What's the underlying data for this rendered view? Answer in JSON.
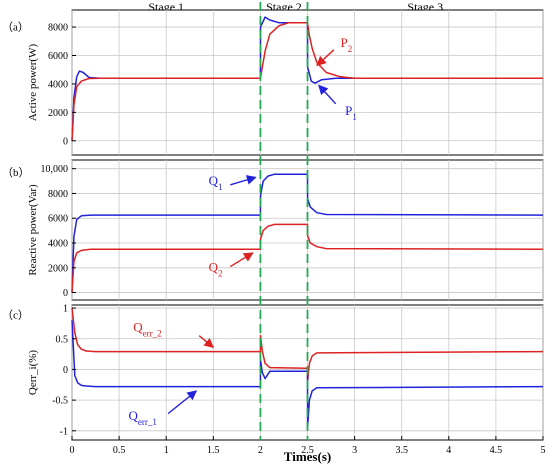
{
  "colors": {
    "p1": "#2222dd",
    "p2": "#dd2222",
    "divider": "#22aa55",
    "grid": "#c8c8c8",
    "axis": "#000000"
  },
  "chart_data": {
    "type": "line",
    "xlabel": "Times(s)",
    "x_ticks": [
      "0",
      "0.5",
      "1",
      "1.5",
      "2",
      "2.5",
      "3",
      "3.5",
      "4",
      "4.5",
      "5"
    ],
    "xlim": [
      0,
      5
    ],
    "stages": [
      {
        "label": "Stage 1",
        "x_center": 1.0
      },
      {
        "label": "Stage 2",
        "x_center": 2.25
      },
      {
        "label": "Stage 3",
        "x_center": 3.75
      }
    ],
    "dividers": [
      2.0,
      2.5
    ],
    "grid": true,
    "panels": [
      {
        "id": "a",
        "tag": "（a）",
        "ylabel": "Active power(W)",
        "ylim": [
          -1000,
          9200
        ],
        "y_ticks": [
          0,
          2000,
          4000,
          6000,
          8000
        ],
        "y_tick_labels": [
          "0",
          "2000",
          "4000",
          "6000",
          "8000"
        ],
        "series": [
          {
            "name": "P1",
            "label_main": "P",
            "label_sub": "1",
            "color": "blue",
            "x": [
              0,
              0.02,
              0.05,
              0.08,
              0.12,
              0.18,
              0.3,
              2.0,
              2.001,
              2.05,
              2.1,
              2.2,
              2.5,
              2.501,
              2.54,
              2.58,
              2.65,
              2.8,
              5.0
            ],
            "y": [
              0,
              3000,
              4500,
              4900,
              4800,
              4450,
              4400,
              4400,
              8000,
              8700,
              8500,
              8300,
              8300,
              5200,
              4200,
              4050,
              4300,
              4400,
              4400
            ]
          },
          {
            "name": "P2",
            "label_main": "P",
            "label_sub": "2",
            "color": "red",
            "x": [
              0,
              0.02,
              0.05,
              0.1,
              0.18,
              0.3,
              2.0,
              2.05,
              2.1,
              2.2,
              2.3,
              2.5,
              2.52,
              2.55,
              2.6,
              2.7,
              2.85,
              3.0,
              5.0
            ],
            "y": [
              0,
              2500,
              3800,
              4200,
              4380,
              4400,
              4400,
              6300,
              7500,
              8100,
              8300,
              8300,
              7400,
              6500,
              5500,
              4800,
              4500,
              4400,
              4400
            ]
          }
        ],
        "annotations": [
          {
            "series": "P2",
            "text_x": 2.85,
            "text_y": 6600,
            "arrow_from": [
              2.78,
              6400
            ],
            "arrow_to": [
              2.6,
              5300
            ]
          },
          {
            "series": "P1",
            "text_x": 2.9,
            "text_y": 1800,
            "arrow_from": [
              2.8,
              2600
            ],
            "arrow_to": [
              2.62,
              3900
            ]
          }
        ]
      },
      {
        "id": "b",
        "tag": "（b）",
        "ylabel": "Reactive power(Var)",
        "ylim": [
          -600,
          10700
        ],
        "y_ticks": [
          0,
          2000,
          4000,
          6000,
          8000,
          10000
        ],
        "y_tick_labels": [
          "0",
          "2000",
          "4000",
          "6000",
          "8000",
          "10,000"
        ],
        "series": [
          {
            "name": "Q1",
            "label_main": "Q",
            "label_sub": "1",
            "color": "blue",
            "x": [
              0,
              0.02,
              0.05,
              0.1,
              0.2,
              2.0,
              2.001,
              2.03,
              2.08,
              2.15,
              2.5,
              2.501,
              2.53,
              2.6,
              2.7,
              5.0
            ],
            "y": [
              0,
              4500,
              5900,
              6200,
              6250,
              6250,
              7800,
              9000,
              9400,
              9550,
              9550,
              7600,
              6900,
              6450,
              6300,
              6250
            ]
          },
          {
            "name": "Q2",
            "label_main": "Q",
            "label_sub": "2",
            "color": "red",
            "x": [
              0,
              0.02,
              0.05,
              0.1,
              0.2,
              2.0,
              2.001,
              2.03,
              2.08,
              2.15,
              2.5,
              2.501,
              2.53,
              2.6,
              2.7,
              5.0
            ],
            "y": [
              0,
              2500,
              3200,
              3400,
              3500,
              3500,
              4300,
              5000,
              5350,
              5500,
              5500,
              4600,
              4000,
              3700,
              3550,
              3500
            ]
          }
        ],
        "annotations": [
          {
            "series": "Q1",
            "text_x": 1.45,
            "text_y": 8700,
            "arrow_from": [
              1.68,
              8700
            ],
            "arrow_to": [
              1.95,
              9300
            ]
          },
          {
            "series": "Q2",
            "text_x": 1.45,
            "text_y": 1700,
            "arrow_from": [
              1.68,
              2100
            ],
            "arrow_to": [
              1.92,
              3200
            ]
          }
        ]
      },
      {
        "id": "c",
        "tag": "（c）",
        "ylabel": "Qerr_i(%)",
        "ylim": [
          -1.15,
          1.05
        ],
        "y_ticks": [
          -1,
          -0.5,
          0,
          0.5,
          1
        ],
        "y_tick_labels": [
          "-1",
          "-0.5",
          "0",
          "0.5",
          "1"
        ],
        "series": [
          {
            "name": "Qerr_2",
            "label_main": "Q",
            "label_sub": "err_2",
            "color": "red",
            "x": [
              0,
              0.03,
              0.06,
              0.1,
              0.15,
              0.25,
              2.0,
              2.001,
              2.02,
              2.05,
              2.1,
              2.5,
              2.501,
              2.52,
              2.55,
              2.6,
              5.0
            ],
            "y": [
              1.0,
              0.6,
              0.4,
              0.33,
              0.3,
              0.29,
              0.29,
              0.55,
              0.3,
              0.1,
              0.03,
              0.02,
              -0.2,
              0.1,
              0.22,
              0.27,
              0.29
            ]
          },
          {
            "name": "Qerr_1",
            "label_main": "Q",
            "label_sub": "err_1",
            "color": "blue",
            "x": [
              0,
              0.03,
              0.06,
              0.1,
              0.15,
              0.25,
              2.0,
              2.001,
              2.02,
              2.05,
              2.1,
              2.5,
              2.501,
              2.52,
              2.55,
              2.6,
              5.0
            ],
            "y": [
              0.8,
              -0.1,
              -0.22,
              -0.26,
              -0.27,
              -0.28,
              -0.28,
              0.15,
              -0.05,
              -0.15,
              -0.03,
              -0.03,
              -0.95,
              -0.5,
              -0.35,
              -0.3,
              -0.28
            ]
          }
        ],
        "annotations": [
          {
            "series": "Qerr_2",
            "text_x": 0.65,
            "text_y": 0.62,
            "arrow_from": [
              1.35,
              0.55
            ],
            "arrow_to": [
              1.5,
              0.36
            ]
          },
          {
            "series": "Qerr_1",
            "text_x": 0.6,
            "text_y": -0.82,
            "arrow_from": [
              1.02,
              -0.72
            ],
            "arrow_to": [
              1.32,
              -0.35
            ]
          }
        ]
      }
    ]
  }
}
